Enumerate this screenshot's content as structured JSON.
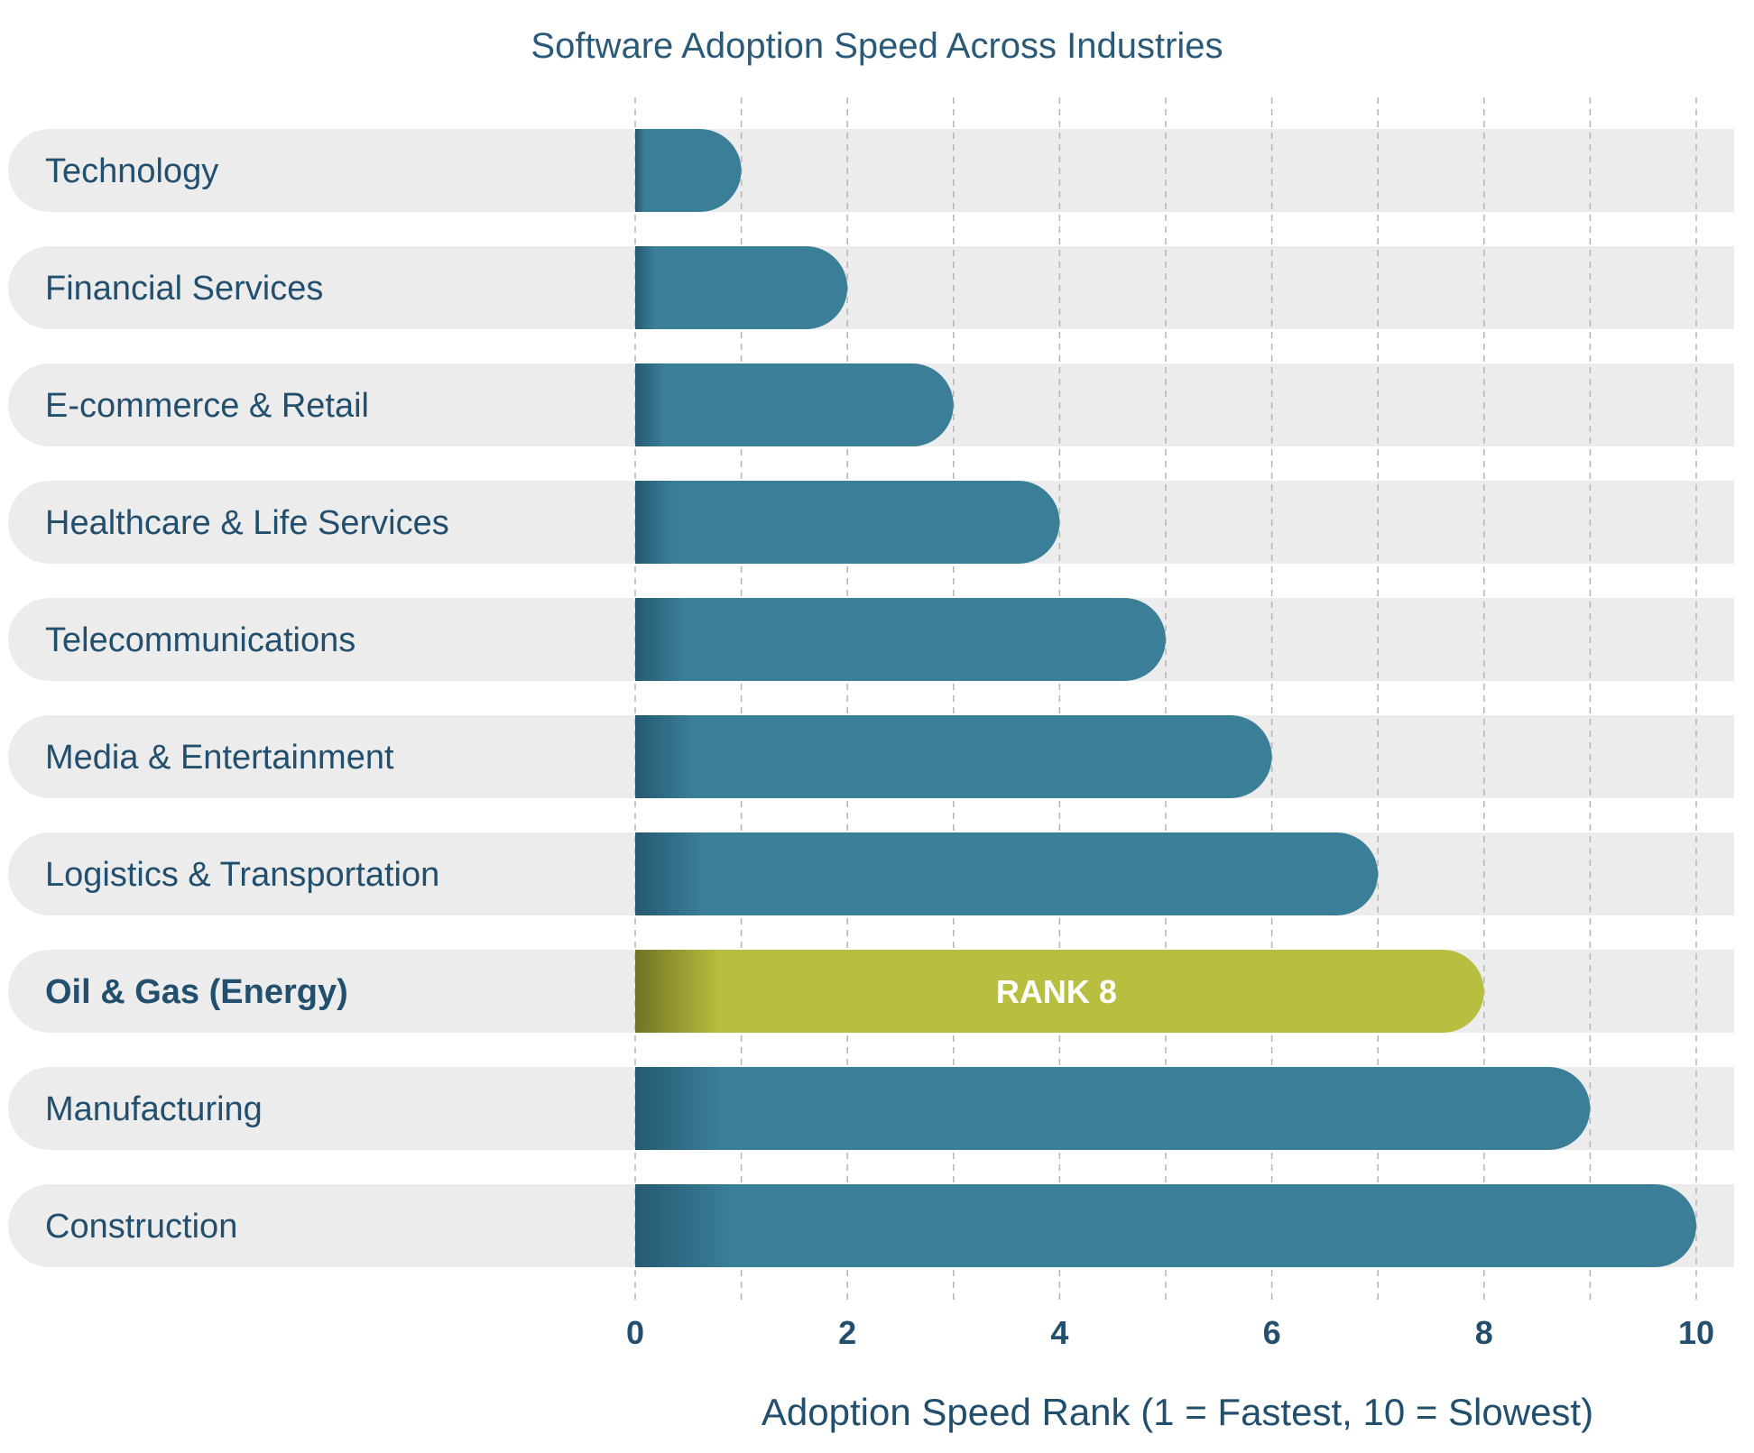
{
  "chart_data": {
    "type": "bar",
    "orientation": "horizontal",
    "title": "Software Adoption Speed Across Industries",
    "xlabel": "Adoption Speed Rank (1 = Fastest, 10 = Slowest)",
    "ylabel": "",
    "xlim": [
      0,
      10
    ],
    "xticks": [
      0,
      2,
      4,
      6,
      8,
      10
    ],
    "minor_gridlines": [
      1,
      3,
      5,
      7,
      9
    ],
    "grid": true,
    "categories": [
      "Technology",
      "Financial Services",
      "E-commerce & Retail",
      "Healthcare & Life Services",
      "Telecommunications",
      "Media & Entertainment",
      "Logistics & Transportation",
      "Oil & Gas (Energy)",
      "Manufacturing",
      "Construction"
    ],
    "values": [
      1,
      2,
      3,
      4,
      5,
      6,
      7,
      8,
      9,
      10
    ],
    "highlight": {
      "category": "Oil & Gas (Energy)",
      "label": "RANK 8",
      "color": "#b8be3f"
    },
    "colors": {
      "bar": "#3a7e98",
      "bar_dark": "#255a72",
      "highlight": "#b8be3f",
      "highlight_dark": "#6f7325",
      "track": "#ececec",
      "text": "#234f6e"
    }
  }
}
